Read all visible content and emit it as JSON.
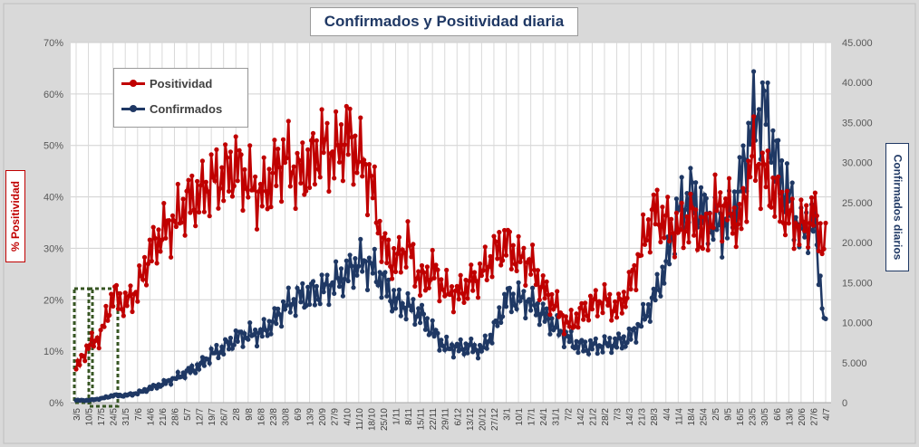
{
  "chart_data": {
    "type": "line",
    "title": "Confirmados  y Positividad  diaria",
    "y_left_label": "% Positividad",
    "y_right_label": "Confirmados diarios",
    "y_left_range": [
      0,
      70
    ],
    "y_left_ticks": [
      "0%",
      "10%",
      "20%",
      "30%",
      "40%",
      "50%",
      "60%",
      "70%"
    ],
    "y_right_range": [
      0,
      45000
    ],
    "y_right_ticks": [
      "0",
      "5.000",
      "10.000",
      "15.000",
      "20.000",
      "25.000",
      "30.000",
      "35.000",
      "40.000",
      "45.000"
    ],
    "x_tick_labels": [
      "3/5",
      "10/5",
      "17/5",
      "24/5",
      "31/5",
      "7/6",
      "14/6",
      "21/6",
      "28/6",
      "5/7",
      "12/7",
      "19/7",
      "26/7",
      "2/8",
      "9/8",
      "16/8",
      "23/8",
      "30/8",
      "6/9",
      "13/9",
      "20/9",
      "27/9",
      "4/10",
      "11/10",
      "18/10",
      "25/10",
      "1/11",
      "8/11",
      "15/11",
      "22/11",
      "29/11",
      "6/12",
      "13/12",
      "20/12",
      "27/12",
      "3/1",
      "10/1",
      "17/1",
      "24/1",
      "31/1",
      "7/2",
      "14/2",
      "21/2",
      "28/2",
      "7/3",
      "14/3",
      "21/3",
      "28/3",
      "4/4",
      "11/4",
      "18/4",
      "25/4",
      "2/5",
      "9/5",
      "16/5",
      "23/5",
      "30/5",
      "6/6",
      "13/6",
      "20/6",
      "27/6",
      "4/7"
    ],
    "grid": true,
    "legend_position": "top-left",
    "series": [
      {
        "name": "Positividad",
        "axis": "left",
        "color": "#c00000",
        "values_weekly": [
          6.5,
          11,
          13,
          21,
          19,
          22,
          29,
          33,
          35,
          39,
          40,
          43,
          44,
          46,
          43,
          40,
          44,
          48,
          44,
          46,
          50,
          48,
          52,
          48,
          43,
          30,
          27,
          31,
          23,
          26,
          22,
          21,
          23,
          25,
          29,
          31,
          28,
          27,
          22,
          19,
          15,
          17,
          19,
          20,
          18,
          22,
          30,
          37,
          35,
          33,
          36,
          32,
          38,
          38,
          34,
          48,
          44,
          40,
          36,
          34,
          37,
          30
        ]
      },
      {
        "name": "Confirmados",
        "axis": "right",
        "color": "#1f3864",
        "values_weekly": [
          300,
          300,
          500,
          900,
          900,
          1200,
          1800,
          2300,
          3000,
          3800,
          4500,
          6000,
          6800,
          8000,
          8500,
          8600,
          10000,
          12000,
          13000,
          13500,
          14000,
          15000,
          16000,
          17500,
          17000,
          15000,
          12500,
          12000,
          11000,
          9000,
          7000,
          6800,
          7000,
          6500,
          9000,
          13000,
          13000,
          12500,
          11000,
          9500,
          8000,
          7000,
          7000,
          7200,
          7500,
          8000,
          10000,
          13000,
          17000,
          24000,
          26000,
          24000,
          22000,
          22000,
          27000,
          35000,
          37000,
          30000,
          26000,
          21000,
          23000,
          9000
        ]
      }
    ]
  }
}
